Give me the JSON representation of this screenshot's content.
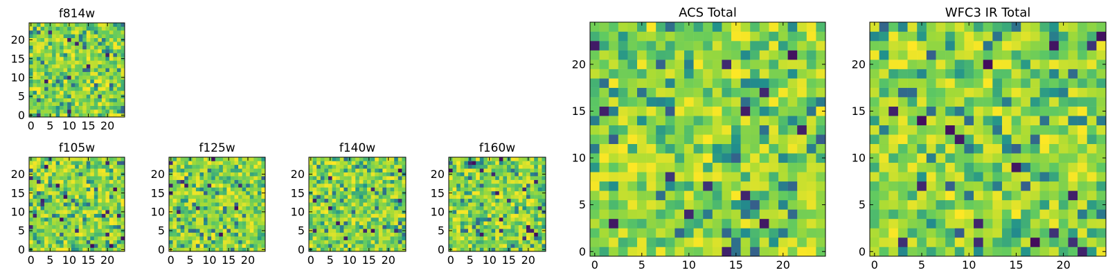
{
  "chart_data": [
    {
      "type": "heatmap",
      "title": "f814w",
      "grid_size": 25,
      "xlim": [
        -0.5,
        24.5
      ],
      "ylim": [
        -0.5,
        24.5
      ],
      "x_ticks": [
        0,
        5,
        10,
        15,
        20
      ],
      "y_ticks": [
        0,
        5,
        10,
        15,
        20
      ],
      "colormap": "viridis",
      "seed": 814
    },
    {
      "type": "heatmap",
      "title": "f105w",
      "grid_size": 25,
      "xlim": [
        -0.5,
        24.5
      ],
      "ylim": [
        -0.5,
        24.5
      ],
      "x_ticks": [
        0,
        5,
        10,
        15,
        20
      ],
      "y_ticks": [
        0,
        5,
        10,
        15,
        20
      ],
      "colormap": "viridis",
      "seed": 105
    },
    {
      "type": "heatmap",
      "title": "f125w",
      "grid_size": 25,
      "xlim": [
        -0.5,
        24.5
      ],
      "ylim": [
        -0.5,
        24.5
      ],
      "x_ticks": [
        0,
        5,
        10,
        15,
        20
      ],
      "y_ticks": [
        0,
        5,
        10,
        15,
        20
      ],
      "colormap": "viridis",
      "seed": 125
    },
    {
      "type": "heatmap",
      "title": "f140w",
      "grid_size": 25,
      "xlim": [
        -0.5,
        24.5
      ],
      "ylim": [
        -0.5,
        24.5
      ],
      "x_ticks": [
        0,
        5,
        10,
        15,
        20
      ],
      "y_ticks": [
        0,
        5,
        10,
        15,
        20
      ],
      "colormap": "viridis",
      "seed": 140
    },
    {
      "type": "heatmap",
      "title": "f160w",
      "grid_size": 25,
      "xlim": [
        -0.5,
        24.5
      ],
      "ylim": [
        -0.5,
        24.5
      ],
      "x_ticks": [
        0,
        5,
        10,
        15,
        20
      ],
      "y_ticks": [
        0,
        5,
        10,
        15,
        20
      ],
      "colormap": "viridis",
      "seed": 160
    },
    {
      "type": "heatmap",
      "title": "ACS Total",
      "grid_size": 25,
      "xlim": [
        -0.5,
        24.5
      ],
      "ylim": [
        -0.5,
        24.5
      ],
      "x_ticks": [
        0,
        5,
        10,
        15,
        20
      ],
      "y_ticks": [
        0,
        5,
        10,
        15,
        20
      ],
      "colormap": "viridis",
      "seed": 777
    },
    {
      "type": "heatmap",
      "title": "WFC3 IR Total",
      "grid_size": 25,
      "xlim": [
        -0.5,
        24.5
      ],
      "ylim": [
        -0.5,
        24.5
      ],
      "x_ticks": [
        0,
        5,
        10,
        15,
        20
      ],
      "y_ticks": [
        0,
        5,
        10,
        15,
        20
      ],
      "colormap": "viridis",
      "seed": 999
    }
  ]
}
